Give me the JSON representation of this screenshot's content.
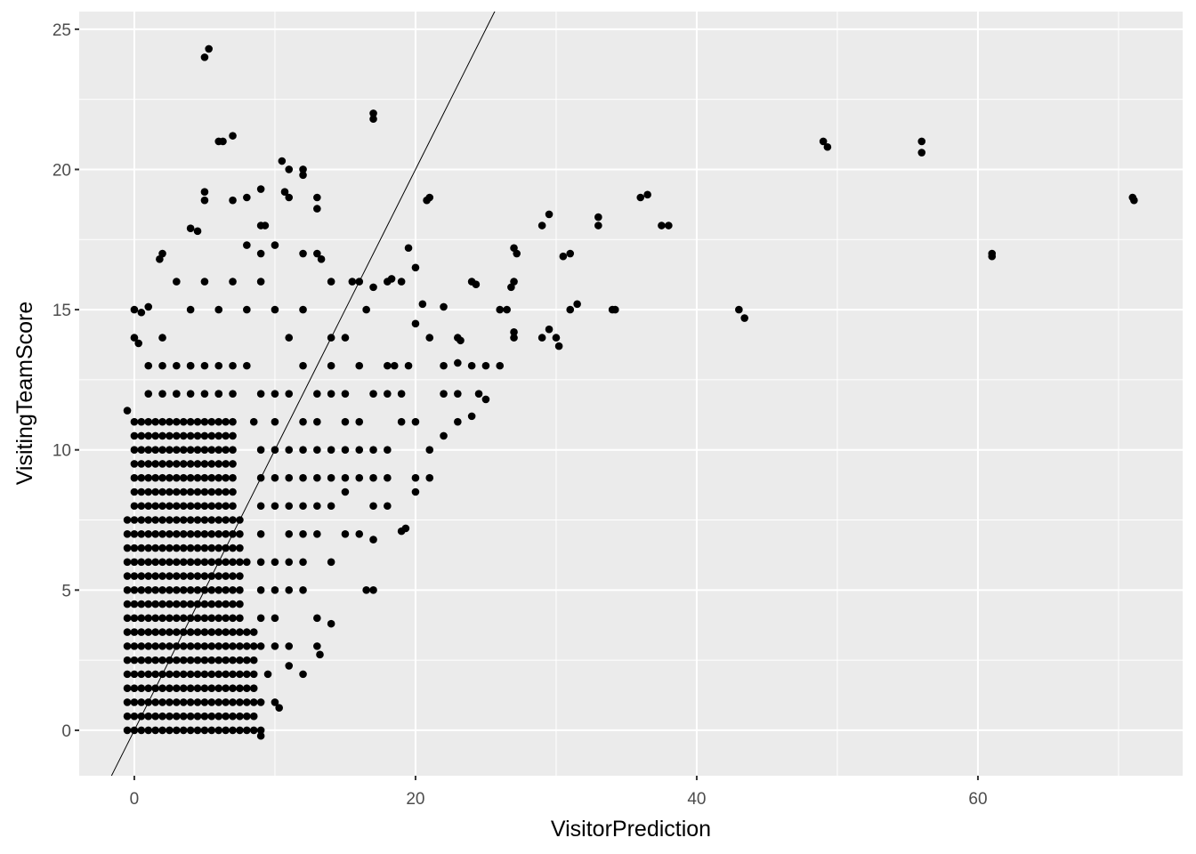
{
  "chart_data": {
    "type": "scatter",
    "x_label": "VisitorPrediction",
    "y_label": "VisitingTeamScore",
    "xlim": [
      -3.92,
      74.56
    ],
    "ylim": [
      -1.62,
      25.63
    ],
    "xticks": [
      0,
      20,
      40,
      60
    ],
    "yticks": [
      0,
      5,
      10,
      15,
      20,
      25
    ],
    "xminorticks": [
      10,
      30,
      50,
      70
    ],
    "yminorticks": [
      2.5,
      7.5,
      12.5,
      17.5,
      22.5
    ],
    "grid": true,
    "panel_color": "#ebebeb",
    "color": "#000000",
    "reference_line": {
      "slope": 1,
      "intercept": 0,
      "color": "#000000"
    },
    "x": [
      -0.5,
      0,
      0.5,
      1,
      1.5,
      2,
      2.5,
      3,
      3.5,
      4,
      4.5,
      5,
      5.5,
      6,
      6.5,
      7,
      7.5,
      8,
      8.5,
      -0.5,
      0,
      0.5,
      1,
      1.5,
      2,
      2.5,
      3,
      3.5,
      4,
      4.5,
      5,
      5.5,
      6,
      6.5,
      7,
      7.5,
      8,
      8.5,
      -0.5,
      0,
      0.5,
      1,
      1.5,
      2,
      2.5,
      3,
      3.5,
      4,
      4.5,
      5,
      5.5,
      6,
      6.5,
      7,
      7.5,
      8,
      8.5,
      -0.5,
      0,
      0.5,
      1,
      1.5,
      2,
      2.5,
      3,
      3.5,
      4,
      4.5,
      5,
      5.5,
      6,
      6.5,
      7,
      7.5,
      8,
      8.5,
      -0.5,
      0,
      0.5,
      1,
      1.5,
      2,
      2.5,
      3,
      3.5,
      4,
      4.5,
      5,
      5.5,
      6,
      6.5,
      7,
      7.5,
      8,
      8.5,
      -0.5,
      0,
      0.5,
      1,
      1.5,
      2,
      2.5,
      3,
      3.5,
      4,
      4.5,
      5,
      5.5,
      6,
      6.5,
      7,
      7.5,
      8,
      8.5,
      -0.5,
      0,
      0.5,
      1,
      1.5,
      2,
      2.5,
      3,
      3.5,
      4,
      4.5,
      5,
      5.5,
      6,
      6.5,
      7,
      7.5,
      8,
      8.5,
      -0.5,
      0,
      0.5,
      1,
      1.5,
      2,
      2.5,
      3,
      3.5,
      4,
      4.5,
      5,
      5.5,
      6,
      6.5,
      7,
      7.5,
      8,
      8.5,
      -0.5,
      0,
      0.5,
      1,
      1.5,
      2,
      2.5,
      3,
      3.5,
      4,
      4.5,
      5,
      5.5,
      6,
      6.5,
      7,
      7.5,
      -0.5,
      0,
      0.5,
      1,
      1.5,
      2,
      2.5,
      3,
      3.5,
      4,
      4.5,
      5,
      5.5,
      6,
      6.5,
      7,
      7.5,
      -0.5,
      0,
      0.5,
      1,
      1.5,
      2,
      2.5,
      3,
      3.5,
      4,
      4.5,
      5,
      5.5,
      6,
      6.5,
      7,
      7.5,
      -0.5,
      0,
      0.5,
      1,
      1.5,
      2,
      2.5,
      3,
      3.5,
      4,
      4.5,
      5,
      5.5,
      6,
      6.5,
      7,
      7.5,
      -0.5,
      0,
      0.5,
      1,
      1.5,
      2,
      2.5,
      3,
      3.5,
      4,
      4.5,
      5,
      5.5,
      6,
      6.5,
      7,
      7.5,
      -0.5,
      0,
      0.5,
      1,
      1.5,
      2,
      2.5,
      3,
      3.5,
      4,
      4.5,
      5,
      5.5,
      6,
      6.5,
      7,
      7.5,
      -0.5,
      0,
      0.5,
      1,
      1.5,
      2,
      2.5,
      3,
      3.5,
      4,
      4.5,
      5,
      5.5,
      6,
      6.5,
      7,
      7.5,
      -0.5,
      0,
      0.5,
      1,
      1.5,
      2,
      2.5,
      3,
      3.5,
      4,
      4.5,
      5,
      5.5,
      6,
      6.5,
      7,
      7.5,
      0,
      0.5,
      1,
      1.5,
      2,
      2.5,
      3,
      3.5,
      4,
      4.5,
      5,
      5.5,
      6,
      6.5,
      7,
      0,
      0.5,
      1,
      1.5,
      2,
      2.5,
      3,
      3.5,
      4,
      4.5,
      5,
      5.5,
      6,
      6.5,
      7,
      0,
      0.5,
      1,
      1.5,
      2,
      2.5,
      3,
      3.5,
      4,
      4.5,
      5,
      5.5,
      6,
      6.5,
      7,
      0,
      0.5,
      1,
      1.5,
      2,
      2.5,
      3,
      3.5,
      4,
      4.5,
      5,
      5.5,
      6,
      6.5,
      7,
      0,
      0.5,
      1,
      1.5,
      2,
      2.5,
      3,
      3.5,
      4,
      4.5,
      5,
      5.5,
      6,
      6.5,
      7,
      0,
      0.5,
      1,
      1.5,
      2,
      2.5,
      3,
      3.5,
      4,
      4.5,
      5,
      5.5,
      6,
      6.5,
      7,
      0,
      0.5,
      1,
      1.5,
      2,
      2.5,
      3,
      3.5,
      4,
      4.5,
      5,
      5.5,
      6,
      6.5,
      7,
      1,
      2,
      3,
      4,
      5,
      6,
      7,
      1,
      2,
      3,
      4,
      5,
      6,
      7,
      5,
      5.3,
      6,
      7,
      6.3,
      17,
      17,
      49,
      49.3,
      56,
      56,
      71,
      71.1,
      61,
      61,
      36,
      36.5,
      37.5,
      38,
      33,
      33,
      29,
      29.5,
      43,
      43.4,
      34,
      34.2,
      31,
      30.5,
      31,
      31.5,
      29.5,
      29,
      30,
      30.2,
      27,
      27.2,
      27,
      26.8,
      27,
      27,
      26,
      26.5,
      25,
      24,
      26,
      24.5,
      25,
      24,
      23,
      22,
      21,
      21,
      20.8,
      21,
      19.5,
      20,
      20.5,
      22,
      24,
      24.3,
      19,
      12,
      12,
      10.5,
      11,
      5,
      5,
      9,
      8,
      7,
      10.7,
      11,
      13,
      13,
      9,
      9.3,
      4,
      4.5,
      2,
      1.8,
      8,
      9,
      10,
      12,
      13,
      13.3,
      15.5,
      16,
      17,
      18,
      18.3,
      16.5,
      14,
      0,
      0.5,
      1,
      0,
      0.3,
      17,
      16.5,
      14,
      15,
      16,
      17,
      18,
      19,
      19.3,
      20,
      20,
      13,
      14,
      13,
      13.2,
      12,
      11,
      9,
      9,
      10,
      10.3,
      -0.5,
      22,
      23,
      22,
      23,
      23,
      23.2,
      21,
      20,
      19.5,
      18.5,
      18,
      19,
      20,
      18,
      17,
      16,
      15,
      17,
      16,
      15,
      14,
      16,
      15,
      14,
      12,
      11,
      10,
      9,
      8,
      7,
      6,
      5,
      4,
      3,
      2,
      3,
      4,
      6,
      8,
      10,
      12,
      13,
      12,
      11,
      10,
      9,
      8,
      11,
      12,
      13,
      14,
      10,
      9,
      9.5,
      8.5,
      9,
      10,
      11,
      12,
      13,
      14,
      15,
      16,
      17,
      18,
      19,
      9,
      10,
      11,
      12,
      13,
      14,
      15,
      9,
      10,
      13,
      9,
      11,
      12,
      9,
      10,
      11,
      10,
      9,
      9,
      10,
      11,
      9,
      12,
      11,
      12,
      13,
      14,
      15,
      17,
      18
    ],
    "values": [
      0,
      0,
      0,
      0,
      0,
      0,
      0,
      0,
      0,
      0,
      0,
      0,
      0,
      0,
      0,
      0,
      0,
      0,
      0,
      0.5,
      0.5,
      0.5,
      0.5,
      0.5,
      0.5,
      0.5,
      0.5,
      0.5,
      0.5,
      0.5,
      0.5,
      0.5,
      0.5,
      0.5,
      0.5,
      0.5,
      0.5,
      0.5,
      1,
      1,
      1,
      1,
      1,
      1,
      1,
      1,
      1,
      1,
      1,
      1,
      1,
      1,
      1,
      1,
      1,
      1,
      1,
      1.5,
      1.5,
      1.5,
      1.5,
      1.5,
      1.5,
      1.5,
      1.5,
      1.5,
      1.5,
      1.5,
      1.5,
      1.5,
      1.5,
      1.5,
      1.5,
      1.5,
      1.5,
      1.5,
      2,
      2,
      2,
      2,
      2,
      2,
      2,
      2,
      2,
      2,
      2,
      2,
      2,
      2,
      2,
      2,
      2,
      2,
      2,
      2.5,
      2.5,
      2.5,
      2.5,
      2.5,
      2.5,
      2.5,
      2.5,
      2.5,
      2.5,
      2.5,
      2.5,
      2.5,
      2.5,
      2.5,
      2.5,
      2.5,
      2.5,
      2.5,
      3,
      3,
      3,
      3,
      3,
      3,
      3,
      3,
      3,
      3,
      3,
      3,
      3,
      3,
      3,
      3,
      3,
      3,
      3,
      3.5,
      3.5,
      3.5,
      3.5,
      3.5,
      3.5,
      3.5,
      3.5,
      3.5,
      3.5,
      3.5,
      3.5,
      3.5,
      3.5,
      3.5,
      3.5,
      3.5,
      3.5,
      3.5,
      4,
      4,
      4,
      4,
      4,
      4,
      4,
      4,
      4,
      4,
      4,
      4,
      4,
      4,
      4,
      4,
      4,
      4.5,
      4.5,
      4.5,
      4.5,
      4.5,
      4.5,
      4.5,
      4.5,
      4.5,
      4.5,
      4.5,
      4.5,
      4.5,
      4.5,
      4.5,
      4.5,
      4.5,
      5,
      5,
      5,
      5,
      5,
      5,
      5,
      5,
      5,
      5,
      5,
      5,
      5,
      5,
      5,
      5,
      5,
      5.5,
      5.5,
      5.5,
      5.5,
      5.5,
      5.5,
      5.5,
      5.5,
      5.5,
      5.5,
      5.5,
      5.5,
      5.5,
      5.5,
      5.5,
      5.5,
      5.5,
      6,
      6,
      6,
      6,
      6,
      6,
      6,
      6,
      6,
      6,
      6,
      6,
      6,
      6,
      6,
      6,
      6,
      6.5,
      6.5,
      6.5,
      6.5,
      6.5,
      6.5,
      6.5,
      6.5,
      6.5,
      6.5,
      6.5,
      6.5,
      6.5,
      6.5,
      6.5,
      6.5,
      6.5,
      7,
      7,
      7,
      7,
      7,
      7,
      7,
      7,
      7,
      7,
      7,
      7,
      7,
      7,
      7,
      7,
      7,
      7.5,
      7.5,
      7.5,
      7.5,
      7.5,
      7.5,
      7.5,
      7.5,
      7.5,
      7.5,
      7.5,
      7.5,
      7.5,
      7.5,
      7.5,
      7.5,
      7.5,
      8,
      8,
      8,
      8,
      8,
      8,
      8,
      8,
      8,
      8,
      8,
      8,
      8,
      8,
      8,
      8.5,
      8.5,
      8.5,
      8.5,
      8.5,
      8.5,
      8.5,
      8.5,
      8.5,
      8.5,
      8.5,
      8.5,
      8.5,
      8.5,
      8.5,
      9,
      9,
      9,
      9,
      9,
      9,
      9,
      9,
      9,
      9,
      9,
      9,
      9,
      9,
      9,
      9.5,
      9.5,
      9.5,
      9.5,
      9.5,
      9.5,
      9.5,
      9.5,
      9.5,
      9.5,
      9.5,
      9.5,
      9.5,
      9.5,
      9.5,
      10,
      10,
      10,
      10,
      10,
      10,
      10,
      10,
      10,
      10,
      10,
      10,
      10,
      10,
      10,
      10.5,
      10.5,
      10.5,
      10.5,
      10.5,
      10.5,
      10.5,
      10.5,
      10.5,
      10.5,
      10.5,
      10.5,
      10.5,
      10.5,
      10.5,
      11,
      11,
      11,
      11,
      11,
      11,
      11,
      11,
      11,
      11,
      11,
      11,
      11,
      11,
      11,
      12,
      12,
      12,
      12,
      12,
      12,
      12,
      13,
      13,
      13,
      13,
      13,
      13,
      13,
      24,
      24.3,
      21,
      21.2,
      21,
      22,
      21.8,
      21,
      20.8,
      21,
      20.6,
      19,
      18.9,
      17,
      16.9,
      19,
      19.1,
      18,
      18,
      18.3,
      18,
      18,
      18.4,
      15,
      14.7,
      15,
      15,
      17,
      16.9,
      15,
      15.2,
      14.3,
      14,
      14,
      13.7,
      17.2,
      17,
      16,
      15.8,
      14,
      14.2,
      15,
      15,
      13,
      13,
      13,
      12,
      11.8,
      11.2,
      11,
      10.5,
      10,
      9,
      18.9,
      19,
      17.2,
      16.5,
      15.2,
      15.1,
      16,
      15.9,
      16,
      20,
      19.8,
      20.3,
      20,
      19.2,
      18.9,
      19.3,
      19,
      18.9,
      19.2,
      19,
      19,
      18.6,
      18,
      18,
      17.9,
      17.8,
      17,
      16.8,
      17.3,
      17,
      17.3,
      17,
      17,
      16.8,
      16,
      16,
      15.8,
      16,
      16.1,
      15,
      16,
      15,
      14.9,
      15.1,
      14,
      13.8,
      5,
      5,
      6,
      7,
      7,
      6.8,
      8,
      7.1,
      7.2,
      9,
      8.5,
      4,
      3.8,
      3,
      2.7,
      2,
      2.3,
      0,
      -0.2,
      1,
      0.8,
      11.4,
      12,
      12,
      13,
      13.1,
      14,
      13.9,
      14,
      14.5,
      13,
      13,
      12,
      11,
      11,
      10,
      9,
      9,
      8.5,
      8,
      10,
      11,
      12,
      13,
      14,
      14,
      15,
      14,
      15,
      16,
      15,
      16,
      15,
      16,
      15,
      16,
      14,
      12,
      13,
      12,
      13,
      12,
      13,
      11,
      9,
      10,
      8,
      7,
      6,
      5,
      6,
      7,
      9,
      4,
      3,
      2,
      11,
      12,
      11,
      12,
      11,
      12,
      13,
      12,
      11,
      12,
      13,
      12,
      10,
      10,
      9,
      10,
      10,
      10,
      10,
      9,
      9,
      9,
      8,
      8,
      8,
      6,
      6,
      6,
      5,
      5,
      4,
      3,
      3,
      1,
      5,
      7,
      7,
      8,
      8,
      9,
      10,
      9
    ]
  }
}
